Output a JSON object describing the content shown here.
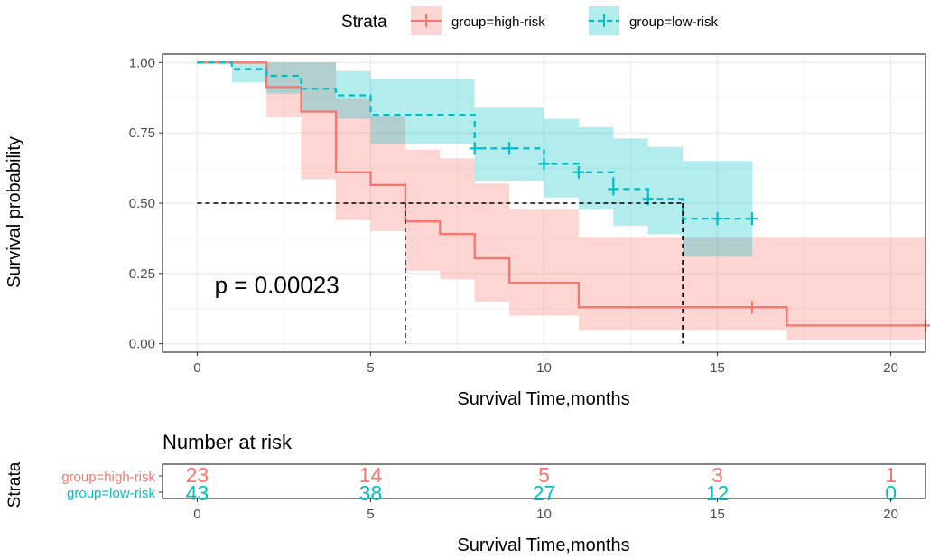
{
  "chart_data": {
    "type": "line",
    "subtype": "kaplan-meier",
    "legend": {
      "title": "Strata",
      "placement": "top",
      "entries": [
        {
          "label": "group=high-risk",
          "color": "#F8766D",
          "linestyle": "solid"
        },
        {
          "label": "group=low-risk",
          "color": "#00BFC4",
          "linestyle": "dashed"
        }
      ]
    },
    "xlabel": "Survival Time,months",
    "ylabel": "Survival probability",
    "xlim": [
      -1,
      21
    ],
    "ylim": [
      -0.03,
      1.03
    ],
    "x_ticks": [
      0,
      5,
      10,
      15,
      20
    ],
    "x_tick_labels": [
      "0",
      "5",
      "10",
      "15",
      "20"
    ],
    "y_ticks": [
      0.0,
      0.25,
      0.5,
      0.75,
      1.0
    ],
    "y_tick_labels": [
      "0.00",
      "0.25",
      "0.50",
      "0.75",
      "1.00"
    ],
    "grid": true,
    "pvalue_text": "p = 0.00023",
    "pvalue_position": {
      "x": 0.5,
      "y": 0.18
    },
    "median_line": {
      "y": 0.5,
      "x_values": [
        6,
        14
      ]
    },
    "series": [
      {
        "name": "group=high-risk",
        "color": "#F8766D",
        "band_color": "#F8766D",
        "steps": [
          {
            "x": 0,
            "surv": 1.0,
            "lower": 1.0,
            "upper": 1.0
          },
          {
            "x": 2,
            "surv": 0.913,
            "lower": 0.805,
            "upper": 1.0
          },
          {
            "x": 3,
            "surv": 0.826,
            "lower": 0.585,
            "upper": 1.0
          },
          {
            "x": 4,
            "surv": 0.61,
            "lower": 0.44,
            "upper": 0.87
          },
          {
            "x": 5,
            "surv": 0.565,
            "lower": 0.4,
            "upper": 0.81
          },
          {
            "x": 6,
            "surv": 0.435,
            "lower": 0.26,
            "upper": 0.69
          },
          {
            "x": 7,
            "surv": 0.39,
            "lower": 0.23,
            "upper": 0.66
          },
          {
            "x": 8,
            "surv": 0.304,
            "lower": 0.15,
            "upper": 0.57
          },
          {
            "x": 9,
            "surv": 0.217,
            "lower": 0.1,
            "upper": 0.48
          },
          {
            "x": 11,
            "surv": 0.13,
            "lower": 0.05,
            "upper": 0.38
          },
          {
            "x": 17,
            "surv": 0.065,
            "lower": 0.015,
            "upper": 0.38
          },
          {
            "x": 21,
            "surv": 0.065,
            "lower": 0.015,
            "upper": 0.38
          }
        ],
        "censored": [
          {
            "x": 16,
            "surv": 0.13
          },
          {
            "x": 21,
            "surv": 0.065
          }
        ]
      },
      {
        "name": "group=low-risk",
        "color": "#00BFC4",
        "band_color": "#00BFC4",
        "steps": [
          {
            "x": 0,
            "surv": 1.0,
            "lower": 1.0,
            "upper": 1.0
          },
          {
            "x": 1,
            "surv": 0.977,
            "lower": 0.93,
            "upper": 1.0
          },
          {
            "x": 2,
            "surv": 0.953,
            "lower": 0.89,
            "upper": 1.0
          },
          {
            "x": 3,
            "surv": 0.907,
            "lower": 0.82,
            "upper": 1.0
          },
          {
            "x": 4,
            "surv": 0.884,
            "lower": 0.8,
            "upper": 0.97
          },
          {
            "x": 5,
            "surv": 0.814,
            "lower": 0.71,
            "upper": 0.94
          },
          {
            "x": 8,
            "surv": 0.695,
            "lower": 0.58,
            "upper": 0.84
          },
          {
            "x": 10,
            "surv": 0.64,
            "lower": 0.52,
            "upper": 0.8
          },
          {
            "x": 11,
            "surv": 0.61,
            "lower": 0.48,
            "upper": 0.77
          },
          {
            "x": 12,
            "surv": 0.55,
            "lower": 0.42,
            "upper": 0.73
          },
          {
            "x": 13,
            "surv": 0.515,
            "lower": 0.39,
            "upper": 0.7
          },
          {
            "x": 14,
            "surv": 0.445,
            "lower": 0.31,
            "upper": 0.65
          },
          {
            "x": 16,
            "surv": 0.445,
            "lower": 0.31,
            "upper": 0.65
          }
        ],
        "censored": [
          {
            "x": 8,
            "surv": 0.695
          },
          {
            "x": 9,
            "surv": 0.695
          },
          {
            "x": 10,
            "surv": 0.64
          },
          {
            "x": 11,
            "surv": 0.61
          },
          {
            "x": 12,
            "surv": 0.55
          },
          {
            "x": 13,
            "surv": 0.515
          },
          {
            "x": 15,
            "surv": 0.445
          },
          {
            "x": 16,
            "surv": 0.445
          }
        ]
      }
    ],
    "risk_table": {
      "title": "Number at risk",
      "ylabel": "Strata",
      "xlabel": "Survival Time,months",
      "times": [
        0,
        5,
        10,
        15,
        20
      ],
      "rows": [
        {
          "label": "group=high-risk",
          "color": "#F8766D",
          "counts": [
            "23",
            "14",
            "5",
            "3",
            "1"
          ]
        },
        {
          "label": "group=low-risk",
          "color": "#00BFC4",
          "counts": [
            "43",
            "38",
            "27",
            "12",
            "0"
          ]
        }
      ]
    }
  }
}
